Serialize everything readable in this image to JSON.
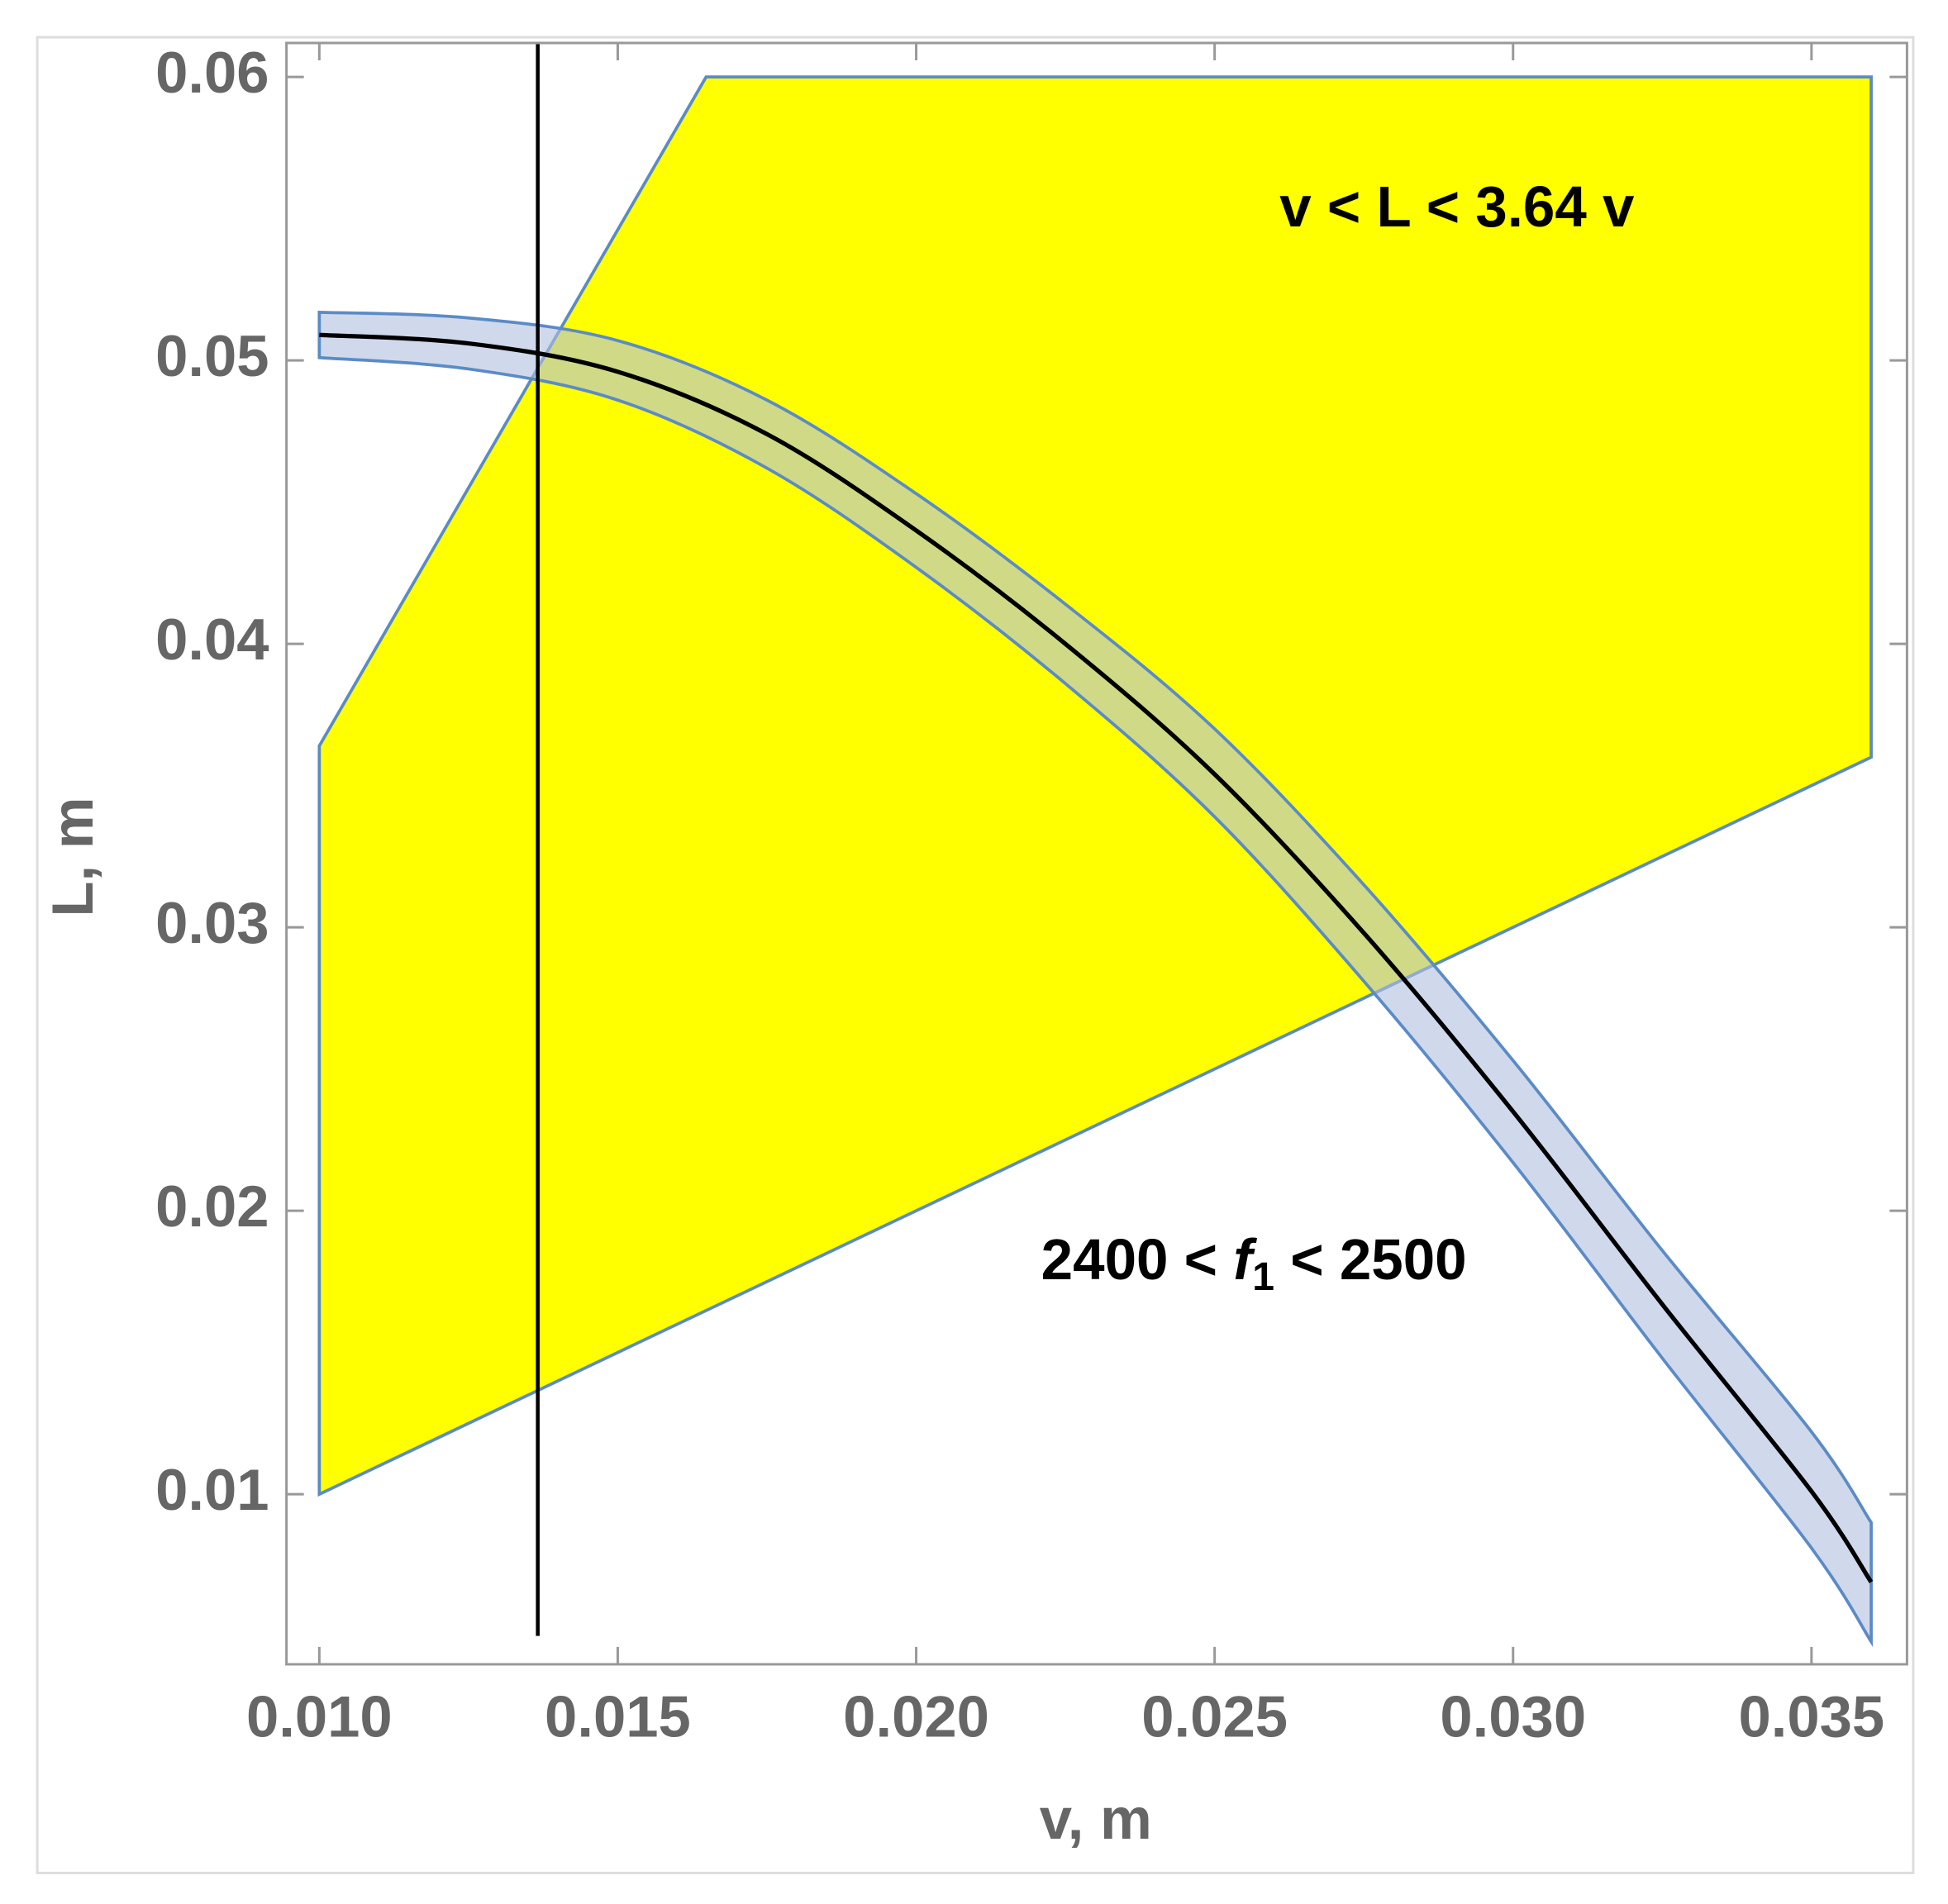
{
  "chart_data": {
    "type": "region",
    "xlabel": "v, m",
    "ylabel": "L, m",
    "xlim": [
      0.00945,
      0.0366
    ],
    "ylim": [
      0.004,
      0.0612
    ],
    "xticks": [
      {
        "value": 0.01,
        "label": "0.010"
      },
      {
        "value": 0.015,
        "label": "0.015"
      },
      {
        "value": 0.02,
        "label": "0.020"
      },
      {
        "value": 0.025,
        "label": "0.025"
      },
      {
        "value": 0.03,
        "label": "0.030"
      },
      {
        "value": 0.035,
        "label": "0.035"
      }
    ],
    "yticks": [
      0.01,
      0.02,
      0.03,
      0.04,
      0.05,
      0.06
    ],
    "region": {
      "x": [
        0.01,
        0.01,
        0.01648,
        0.036,
        0.036
      ],
      "y": [
        0.01,
        0.0364,
        0.06,
        0.06,
        0.036
      ],
      "color": "#ffff00",
      "edge_color": "#5b8bc7"
    },
    "curve": {
      "x": [
        0.01,
        0.0125,
        0.015,
        0.0175,
        0.02,
        0.0225,
        0.025,
        0.0275,
        0.03,
        0.0325,
        0.035,
        0.036
      ],
      "values": [
        0.0509,
        0.0506,
        0.0496,
        0.0474,
        0.044,
        0.04,
        0.0354,
        0.0298,
        0.0235,
        0.0167,
        0.0101,
        0.0069
      ],
      "band_high": [
        0.0517,
        0.0515,
        0.0507,
        0.0486,
        0.0453,
        0.0414,
        0.037,
        0.0315,
        0.0253,
        0.0186,
        0.0122,
        0.009
      ],
      "band_low": [
        0.0501,
        0.0497,
        0.0486,
        0.0462,
        0.0427,
        0.0386,
        0.0339,
        0.0281,
        0.0217,
        0.0148,
        0.0081,
        0.0048
      ],
      "color": "#000000",
      "band_color": "#b0bfdd",
      "edge_color": "#5b8bc7"
    },
    "vline": {
      "x": 0.01366,
      "y_range": [
        0.005,
        0.0612
      ],
      "color": "#000000"
    },
    "annotations": [
      {
        "text": "v < L < 3.64 v"
      },
      {
        "parts": [
          "2400 < ",
          "f",
          "1",
          " < 2500"
        ]
      }
    ]
  }
}
